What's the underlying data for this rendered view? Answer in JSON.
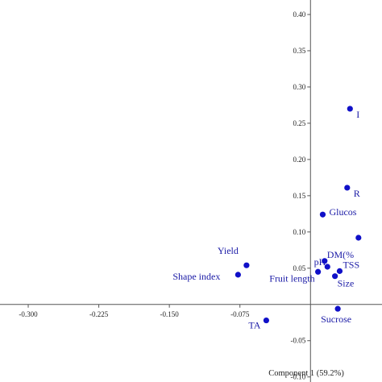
{
  "chart_data": {
    "type": "scatter",
    "title": "",
    "xlabel": "Component 1 (59.2%)",
    "ylabel": "",
    "xlim": [
      -0.33,
      0.076
    ],
    "ylim": [
      -0.107,
      0.42
    ],
    "x_ticks": [
      "-0.300",
      "-0.225",
      "-0.150",
      "-0.075"
    ],
    "y_ticks": [
      "-0.10",
      "-0.05",
      "0.05",
      "0.10",
      "0.15",
      "0.20",
      "0.25",
      "0.30",
      "0.35",
      "0.40"
    ],
    "grid": false,
    "points": [
      {
        "label": "Yield",
        "x": -0.068,
        "y": 0.054
      },
      {
        "label": "Shape index",
        "x": -0.077,
        "y": 0.041
      },
      {
        "label": "TA",
        "x": -0.047,
        "y": -0.022
      },
      {
        "label": "Fruit length",
        "x": 0.008,
        "y": 0.045
      },
      {
        "label": "pH",
        "x": 0.018,
        "y": 0.052
      },
      {
        "label": "DM(%",
        "x": 0.015,
        "y": 0.06
      },
      {
        "label": "TSS",
        "x": 0.031,
        "y": 0.046
      },
      {
        "label": "Size",
        "x": 0.026,
        "y": 0.039
      },
      {
        "label": "Sucrose",
        "x": 0.029,
        "y": -0.006
      },
      {
        "label": "Glucos",
        "x": 0.013,
        "y": 0.124
      },
      {
        "label": "R",
        "x": 0.039,
        "y": 0.161
      },
      {
        "label": "I",
        "x": 0.042,
        "y": 0.27
      },
      {
        "label": "",
        "x": 0.051,
        "y": 0.092
      }
    ]
  }
}
